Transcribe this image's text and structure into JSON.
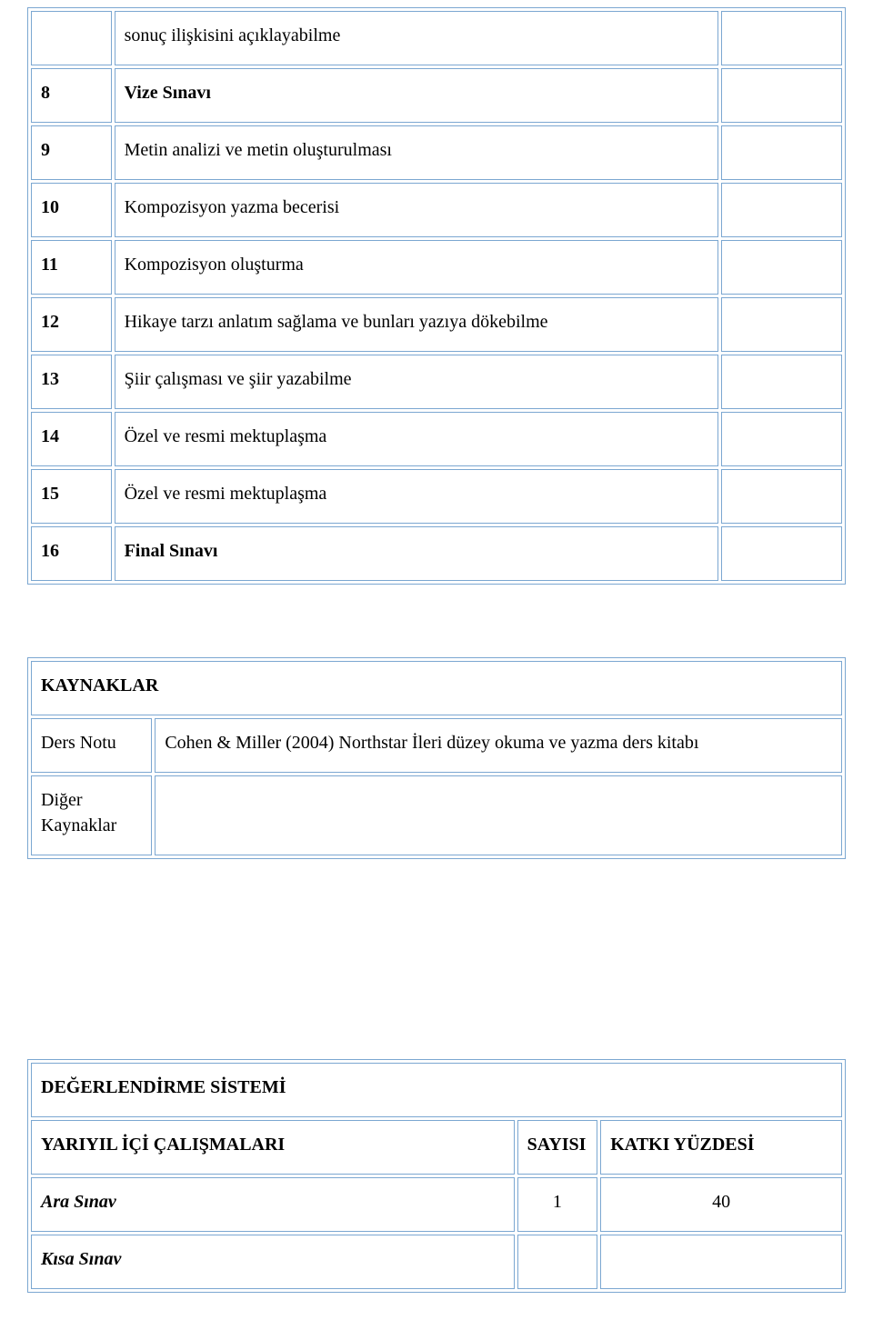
{
  "colors": {
    "border": "#7ba7d1",
    "background": "#ffffff",
    "text": "#000000"
  },
  "typography": {
    "font_family": "Times New Roman",
    "base_size_pt": 15
  },
  "schedule": {
    "columns": [
      "week_number",
      "description",
      "extra"
    ],
    "rows": [
      {
        "num": "",
        "desc": "sonuç ilişkisini açıklayabilme",
        "bold": false
      },
      {
        "num": "8",
        "desc": "Vize Sınavı",
        "bold": true
      },
      {
        "num": "9",
        "desc": "Metin analizi ve metin oluşturulması",
        "bold": false
      },
      {
        "num": "10",
        "desc": "Kompozisyon yazma becerisi",
        "bold": false
      },
      {
        "num": "11",
        "desc": "Kompozisyon oluşturma",
        "bold": false
      },
      {
        "num": "12",
        "desc": "Hikaye tarzı anlatım sağlama ve bunları yazıya dökebilme",
        "bold": false
      },
      {
        "num": "13",
        "desc": "Şiir çalışması ve şiir yazabilme",
        "bold": false
      },
      {
        "num": "14",
        "desc": "Özel ve resmi mektuplaşma",
        "bold": false
      },
      {
        "num": "15",
        "desc": "Özel ve resmi mektuplaşma",
        "bold": false
      },
      {
        "num": "16",
        "desc": "Final Sınavı",
        "bold": true
      }
    ]
  },
  "sources": {
    "header": "KAYNAKLAR",
    "rows": [
      {
        "label": "Ders Notu",
        "content": "Cohen & Miller (2004) Northstar İleri düzey okuma ve yazma ders kitabı"
      },
      {
        "label": "Diğer Kaynaklar",
        "content": ""
      }
    ]
  },
  "evaluation": {
    "header": "DEĞERLENDİRME SİSTEMİ",
    "sub_headers": {
      "desc": "YARIYIL İÇİ ÇALIŞMALARI",
      "count": "SAYISI",
      "pct": "KATKI YÜZDESİ"
    },
    "rows": [
      {
        "label": "Ara Sınav",
        "count": "1",
        "pct": "40"
      },
      {
        "label": "Kısa Sınav",
        "count": "",
        "pct": ""
      }
    ]
  }
}
